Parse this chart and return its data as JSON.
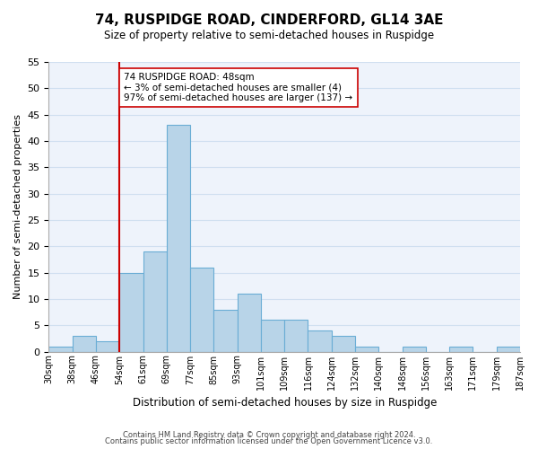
{
  "title": "74, RUSPIDGE ROAD, CINDERFORD, GL14 3AE",
  "subtitle": "Size of property relative to semi-detached houses in Ruspidge",
  "xlabel": "Distribution of semi-detached houses by size in Ruspidge",
  "ylabel": "Number of semi-detached properties",
  "footer_lines": [
    "Contains HM Land Registry data © Crown copyright and database right 2024.",
    "Contains public sector information licensed under the Open Government Licence v3.0."
  ],
  "bin_labels": [
    "30sqm",
    "38sqm",
    "46sqm",
    "54sqm",
    "61sqm",
    "69sqm",
    "77sqm",
    "85sqm",
    "93sqm",
    "101sqm",
    "109sqm",
    "116sqm",
    "124sqm",
    "132sqm",
    "140sqm",
    "148sqm",
    "156sqm",
    "163sqm",
    "171sqm",
    "179sqm",
    "187sqm"
  ],
  "bar_heights": [
    1,
    3,
    2,
    15,
    19,
    43,
    16,
    8,
    11,
    6,
    6,
    4,
    3,
    1,
    0,
    1,
    0,
    1,
    0,
    1
  ],
  "bar_color": "#b8d4e8",
  "bar_edge_color": "#6aadd5",
  "vline_x": 3.0,
  "vline_color": "#cc0000",
  "annotation_text": "74 RUSPIDGE ROAD: 48sqm\n← 3% of semi-detached houses are smaller (4)\n97% of semi-detached houses are larger (137) →",
  "annotation_box_color": "white",
  "annotation_box_edge_color": "#cc0000",
  "ylim": [
    0,
    55
  ],
  "yticks": [
    0,
    5,
    10,
    15,
    20,
    25,
    30,
    35,
    40,
    45,
    50,
    55
  ],
  "grid_color": "#d0dff0",
  "background_color": "#eef3fb"
}
